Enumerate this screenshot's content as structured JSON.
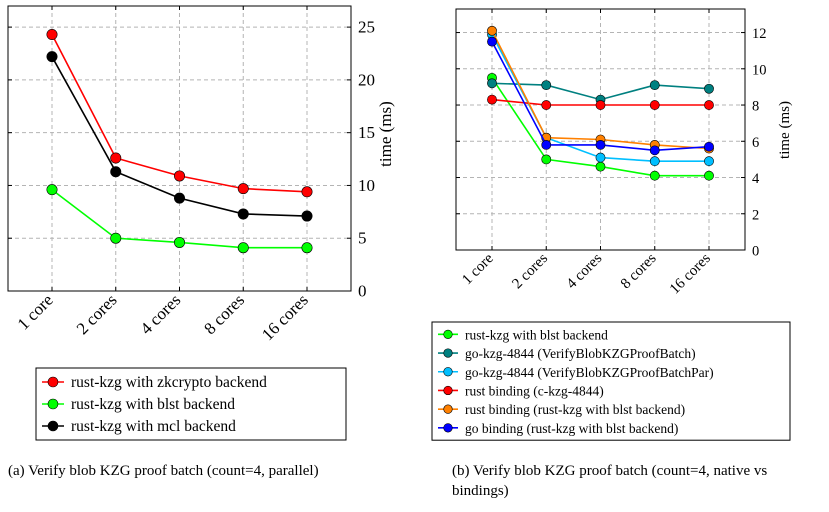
{
  "chart_data": [
    {
      "type": "line",
      "caption": "(a) Verify blob KZG proof batch (count=4, parallel)",
      "categories": [
        "1 core",
        "2 cores",
        "4 cores",
        "8 cores",
        "16 cores"
      ],
      "ylabel": "time (ms)",
      "ylim": [
        0,
        27
      ],
      "yticks": [
        0,
        5,
        10,
        15,
        20,
        25
      ],
      "grid": true,
      "legend_position": "below",
      "series": [
        {
          "name": "rust-kzg with zkcrypto backend",
          "color": "#ff0000",
          "values": [
            24.3,
            12.6,
            10.9,
            9.7,
            9.4
          ]
        },
        {
          "name": "rust-kzg with blst backend",
          "color": "#00ff00",
          "values": [
            9.6,
            5.0,
            4.6,
            4.1,
            4.1
          ]
        },
        {
          "name": "rust-kzg with mcl backend",
          "color": "#000000",
          "values": [
            22.2,
            11.3,
            8.8,
            7.3,
            7.1
          ]
        }
      ]
    },
    {
      "type": "line",
      "caption": "(b) Verify blob KZG proof batch (count=4, native vs bindings)",
      "categories": [
        "1 core",
        "2 cores",
        "4 cores",
        "8 cores",
        "16 cores"
      ],
      "ylabel": "time (ms)",
      "ylim": [
        0,
        13.3
      ],
      "yticks": [
        0,
        2,
        4,
        6,
        8,
        10,
        12
      ],
      "grid": true,
      "legend_position": "below",
      "series": [
        {
          "name": "rust-kzg with blst backend",
          "color": "#00ff00",
          "values": [
            9.5,
            5.0,
            4.6,
            4.1,
            4.1
          ]
        },
        {
          "name": "go-kzg-4844 (VerifyBlobKZGProofBatch)",
          "color": "#008080",
          "values": [
            9.2,
            9.1,
            8.3,
            9.1,
            8.9
          ]
        },
        {
          "name": "go-kzg-4844 (VerifyBlobKZGProofBatchPar)",
          "color": "#00bfff",
          "values": [
            11.9,
            6.2,
            5.1,
            4.9,
            4.9
          ]
        },
        {
          "name": "rust binding (c-kzg-4844)",
          "color": "#ff0000",
          "values": [
            8.3,
            8.0,
            8.0,
            8.0,
            8.0
          ]
        },
        {
          "name": "rust binding (rust-kzg with blst backend)",
          "color": "#ff8000",
          "values": [
            12.1,
            6.2,
            6.1,
            5.8,
            5.6
          ]
        },
        {
          "name": "go binding (rust-kzg with blst backend)",
          "color": "#0000ff",
          "values": [
            11.5,
            5.8,
            5.8,
            5.5,
            5.7
          ]
        }
      ]
    }
  ]
}
